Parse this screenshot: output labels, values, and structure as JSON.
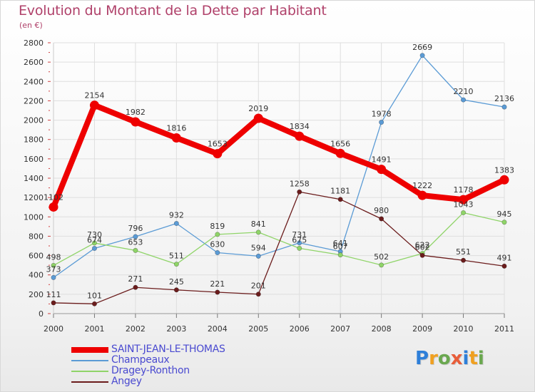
{
  "title": "Evolution du Montant de la Dette par Habitant",
  "unit": "(en €)",
  "logo": {
    "text": "Proxiti",
    "colors": [
      "#2e7fd9",
      "#f0a020",
      "#6aa84f",
      "#e85d3a",
      "#2e7fd9",
      "#f0a020",
      "#6aa84f"
    ]
  },
  "chart_data": {
    "type": "line",
    "x": [
      "2000",
      "2001",
      "2002",
      "2003",
      "2004",
      "2005",
      "2006",
      "2007",
      "2008",
      "2009",
      "2010",
      "2011"
    ],
    "ylim": [
      0,
      2800
    ],
    "yticks": [
      0,
      200,
      400,
      600,
      800,
      1000,
      1200,
      1400,
      1600,
      1800,
      2000,
      2200,
      2400,
      2600,
      2800
    ],
    "grid": true,
    "legend": "bottom-left",
    "series": [
      {
        "name": "SAINT-JEAN-LE-THOMAS",
        "color": "#ee0000",
        "values": [
          1102,
          2154,
          1982,
          1816,
          1653,
          2019,
          1834,
          1656,
          1491,
          1222,
          1178,
          1383
        ],
        "labels": [
          "1102",
          "2154",
          "1982",
          "1816",
          "1653",
          "2019",
          "1834",
          "1656",
          "1491",
          "1222",
          "1178",
          "1383"
        ]
      },
      {
        "name": "Champeaux",
        "color": "#5b9bd5",
        "values": [
          373,
          674,
          796,
          932,
          630,
          594,
          731,
          641,
          1978,
          2669,
          2210,
          2136
        ],
        "labels": [
          "373",
          "674",
          "796",
          "932",
          "630",
          "594",
          "731",
          "641",
          "1978",
          "2669",
          "2210",
          "2136"
        ]
      },
      {
        "name": "Dragey-Ronthon",
        "color": "#8fd468",
        "values": [
          498,
          730,
          653,
          511,
          819,
          841,
          675,
          607,
          502,
          622,
          1043,
          945
        ],
        "labels": [
          "498",
          "730",
          "653",
          "511",
          "819",
          "841",
          "675",
          "607",
          "502",
          "622",
          "1043",
          "945"
        ]
      },
      {
        "name": "Angey",
        "color": "#6b1c1c",
        "values": [
          111,
          101,
          271,
          245,
          221,
          201,
          1258,
          1181,
          980,
          602,
          551,
          491
        ],
        "labels": [
          "111",
          "101",
          "271",
          "245",
          "221",
          "201",
          "1258",
          "1181",
          "980",
          "602",
          "551",
          "491"
        ]
      }
    ]
  }
}
